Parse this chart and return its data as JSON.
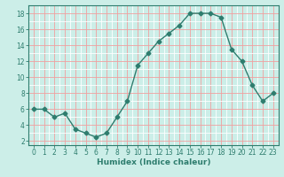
{
  "x": [
    0,
    1,
    2,
    3,
    4,
    5,
    6,
    7,
    8,
    9,
    10,
    11,
    12,
    13,
    14,
    15,
    16,
    17,
    18,
    19,
    20,
    21,
    22,
    23
  ],
  "y": [
    6,
    6,
    5,
    5.5,
    3.5,
    3,
    2.5,
    3,
    5,
    7,
    11.5,
    13,
    14.5,
    15.5,
    16.5,
    18,
    18,
    18,
    17.5,
    13.5,
    12,
    9,
    7,
    8
  ],
  "line_color": "#2e7d6e",
  "marker": "D",
  "marker_size": 2.5,
  "bg_color": "#cceee8",
  "major_grid_color": "#f0a0a0",
  "minor_grid_color": "#ffffff",
  "xlabel": "Humidex (Indice chaleur)",
  "xlim": [
    -0.5,
    23.5
  ],
  "ylim": [
    1.5,
    19.0
  ],
  "yticks": [
    2,
    4,
    6,
    8,
    10,
    12,
    14,
    16,
    18
  ],
  "xticks": [
    0,
    1,
    2,
    3,
    4,
    5,
    6,
    7,
    8,
    9,
    10,
    11,
    12,
    13,
    14,
    15,
    16,
    17,
    18,
    19,
    20,
    21,
    22,
    23
  ],
  "label_fontsize": 6.5,
  "tick_fontsize": 5.5
}
